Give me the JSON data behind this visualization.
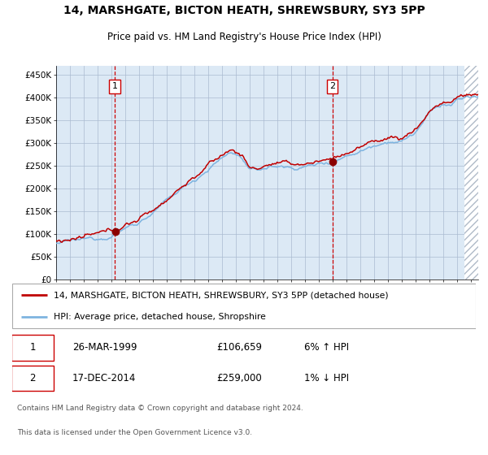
{
  "title": "14, MARSHGATE, BICTON HEATH, SHREWSBURY, SY3 5PP",
  "subtitle": "Price paid vs. HM Land Registry's House Price Index (HPI)",
  "legend_line1": "14, MARSHGATE, BICTON HEATH, SHREWSBURY, SY3 5PP (detached house)",
  "legend_line2": "HPI: Average price, detached house, Shropshire",
  "footnote1": "Contains HM Land Registry data © Crown copyright and database right 2024.",
  "footnote2": "This data is licensed under the Open Government Licence v3.0.",
  "sale1_date": "26-MAR-1999",
  "sale1_price_str": "£106,659",
  "sale1_price": 106659,
  "sale1_hpi": "6% ↑ HPI",
  "sale2_date": "17-DEC-2014",
  "sale2_price_str": "£259,000",
  "sale2_price": 259000,
  "sale2_hpi": "1% ↓ HPI",
  "hpi_color": "#7eb4e0",
  "price_color": "#c00000",
  "dot_color": "#8b0000",
  "vline_color": "#cc0000",
  "bg_color": "#dce9f5",
  "grid_color": "#aabbd0",
  "sale1_x_year": 1999.23,
  "sale2_x_year": 2014.96,
  "ylim": [
    0,
    470000
  ],
  "yticks": [
    0,
    50000,
    100000,
    150000,
    200000,
    250000,
    300000,
    350000,
    400000,
    450000
  ],
  "ytick_labels": [
    "£0",
    "£50K",
    "£100K",
    "£150K",
    "£200K",
    "£250K",
    "£300K",
    "£350K",
    "£400K",
    "£450K"
  ],
  "hatch_start_year": 2024.5,
  "xlim_start": 1995,
  "xlim_end": 2025.5
}
